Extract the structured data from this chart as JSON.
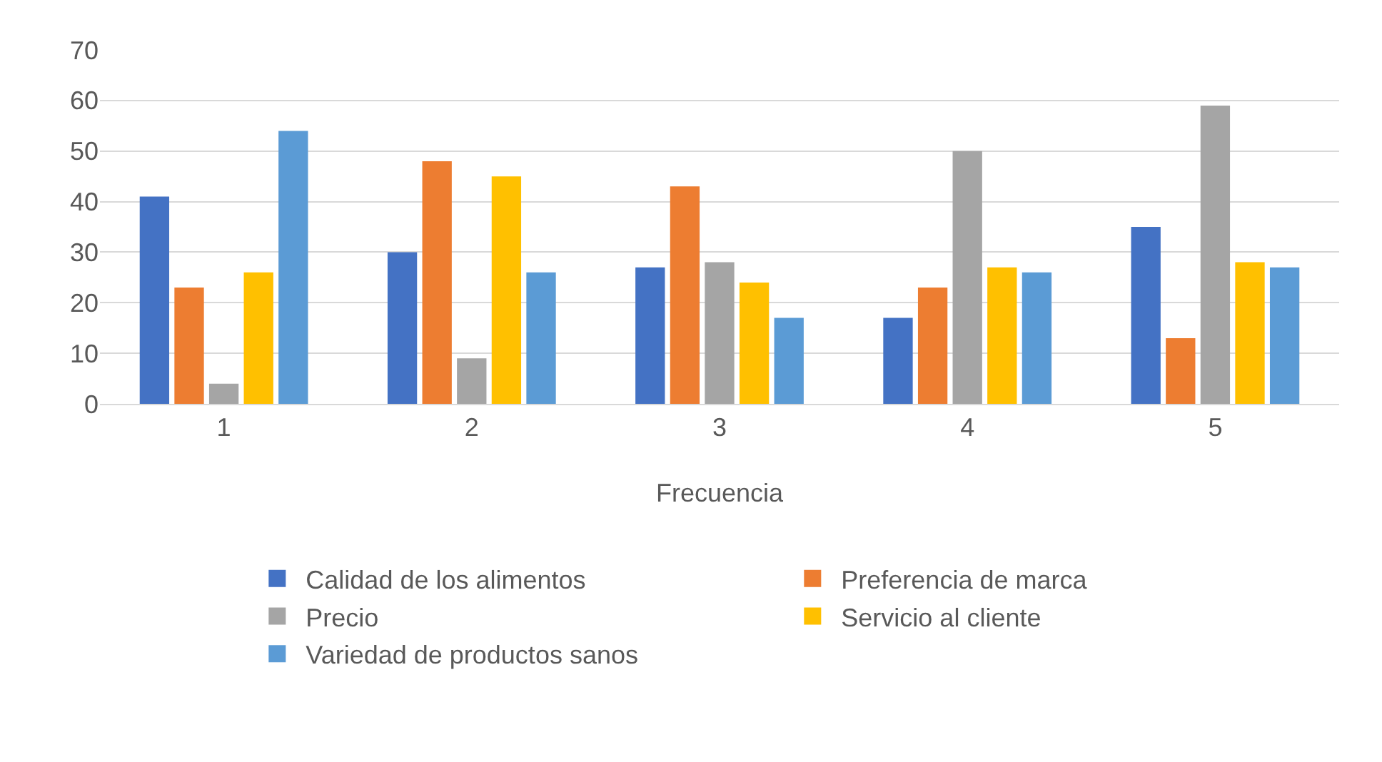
{
  "chart_data": {
    "type": "bar",
    "xlabel": "Frecuencia",
    "categories": [
      "1",
      "2",
      "3",
      "4",
      "5"
    ],
    "series": [
      {
        "name": "Calidad de los alimentos",
        "color": "#4472c4",
        "values": [
          41,
          30,
          27,
          17,
          35
        ]
      },
      {
        "name": "Preferencia de marca",
        "color": "#ed7d31",
        "values": [
          23,
          48,
          43,
          23,
          13
        ]
      },
      {
        "name": "Precio",
        "color": "#a5a5a5",
        "values": [
          4,
          9,
          28,
          50,
          59
        ]
      },
      {
        "name": "Servicio al cliente",
        "color": "#ffc000",
        "values": [
          26,
          45,
          24,
          27,
          28
        ]
      },
      {
        "name": "Variedad de productos sanos",
        "color": "#5b9bd5",
        "values": [
          54,
          26,
          17,
          26,
          27
        ]
      }
    ],
    "ylim": [
      0,
      70
    ],
    "yticks": [
      0,
      10,
      20,
      30,
      40,
      50,
      60,
      70
    ],
    "grid": "y",
    "legend": "bottom"
  }
}
